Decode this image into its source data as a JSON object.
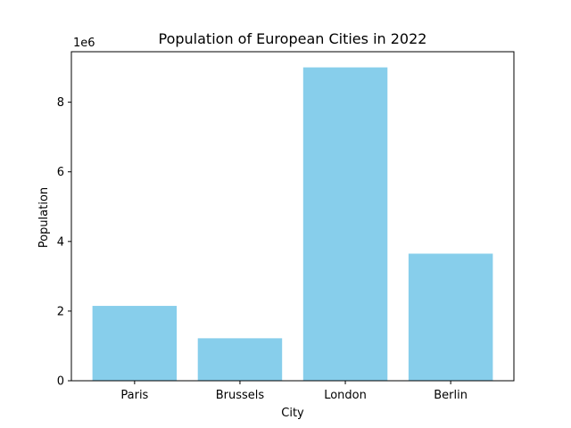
{
  "chart_data": {
    "type": "bar",
    "title": "Population of European Cities in 2022",
    "xlabel": "City",
    "ylabel": "Population",
    "categories": [
      "Paris",
      "Brussels",
      "London",
      "Berlin"
    ],
    "values": [
      2150000,
      1220000,
      9000000,
      3650000
    ],
    "ylim": [
      0,
      9450000
    ],
    "yticks": [
      0,
      2000000,
      4000000,
      6000000,
      8000000
    ],
    "ytick_labels": [
      "0",
      "2",
      "4",
      "6",
      "8"
    ],
    "y_offset_label": "1e6",
    "grid": false,
    "bar_color": "#87ceeb"
  }
}
